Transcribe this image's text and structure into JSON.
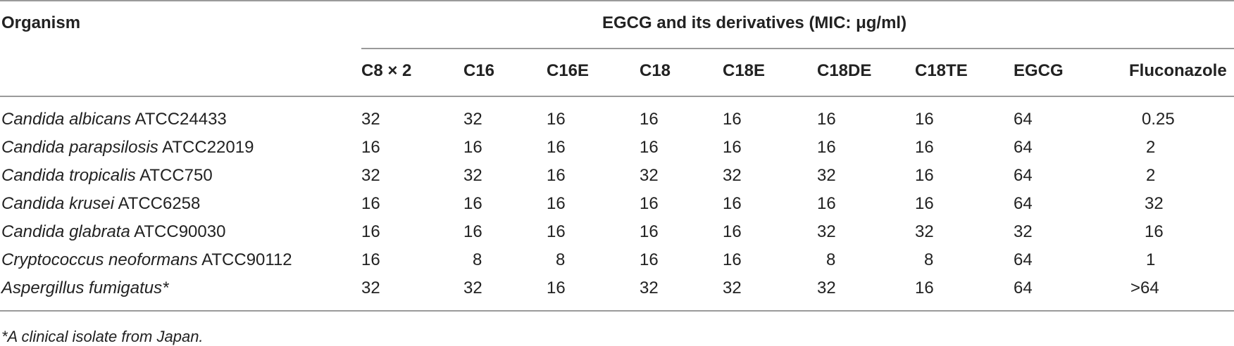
{
  "table": {
    "organism_header": "Organism",
    "group_header": "EGCG and its derivatives (MIC: μg/ml)",
    "columns": [
      "C8 × 2",
      "C16",
      "C16E",
      "C18",
      "C18E",
      "C18DE",
      "C18TE",
      "EGCG",
      "Fluconazole"
    ],
    "rows": [
      {
        "species": "Candida albicans",
        "strain": " ATCC24433",
        "values": [
          "32",
          "32",
          "16",
          "16",
          "16",
          "16",
          "16",
          "64",
          "0.25"
        ]
      },
      {
        "species": "Candida parapsilosis",
        "strain": " ATCC22019",
        "values": [
          "16",
          "16",
          "16",
          "16",
          "16",
          "16",
          "16",
          "64",
          "2"
        ]
      },
      {
        "species": "Candida tropicalis",
        "strain": " ATCC750",
        "values": [
          "32",
          "32",
          "16",
          "32",
          "32",
          "32",
          "16",
          "64",
          "2"
        ]
      },
      {
        "species": "Candida krusei",
        "strain": " ATCC6258",
        "values": [
          "16",
          "16",
          "16",
          "16",
          "16",
          "16",
          "16",
          "64",
          "32"
        ]
      },
      {
        "species": "Candida glabrata",
        "strain": " ATCC90030",
        "values": [
          "16",
          "16",
          "16",
          "16",
          "16",
          "32",
          "32",
          "32",
          "16"
        ]
      },
      {
        "species": "Cryptococcus neoformans",
        "strain": " ATCC90112",
        "values": [
          "16",
          "8",
          "8",
          "16",
          "16",
          "8",
          "8",
          "64",
          "1"
        ]
      },
      {
        "species": "Aspergillus fumigatus*",
        "strain": "",
        "values": [
          "32",
          "32",
          "16",
          "32",
          "32",
          "32",
          "16",
          "64",
          ">64"
        ]
      }
    ]
  },
  "footnote": "*A clinical isolate from Japan."
}
